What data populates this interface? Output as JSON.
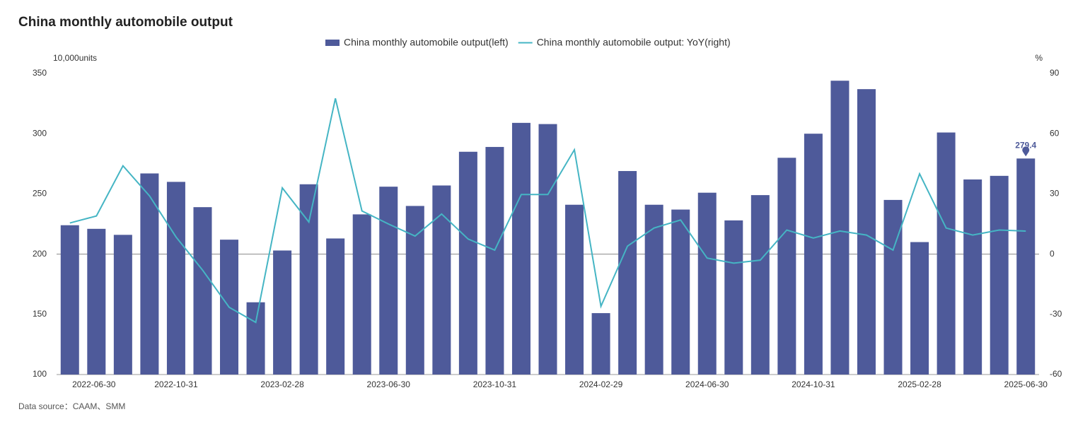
{
  "chart_data": {
    "type": "bar_line",
    "title": "China monthly automobile output",
    "y_label": "10,000units",
    "y2_label": "%",
    "source": "Data source：CAAM、SMM",
    "categories": [
      "2022-06-30",
      null,
      null,
      null,
      "2022-10-31",
      null,
      null,
      null,
      "2023-02-28",
      null,
      null,
      null,
      "2023-06-30",
      null,
      null,
      null,
      "2023-10-31",
      null,
      null,
      null,
      "2024-02-29",
      null,
      null,
      null,
      "2024-06-30",
      null,
      null,
      null,
      "2024-10-31",
      null,
      null,
      null,
      "2025-02-28",
      null,
      null,
      null,
      "2025-06-30"
    ],
    "series": [
      {
        "name": "China monthly automobile output(left)",
        "type": "bar",
        "color": "#4e5a9a",
        "axis": "y",
        "values": [
          224,
          221,
          216,
          267,
          260,
          239,
          212,
          160,
          203,
          258,
          213,
          233,
          256,
          240,
          257,
          285,
          289,
          309,
          308,
          241,
          151,
          269,
          241,
          237,
          251,
          228,
          249,
          280,
          300,
          344,
          337,
          245,
          210,
          301,
          262,
          265,
          279.4
        ]
      },
      {
        "name": "China monthly automobile output: YoY(right)",
        "type": "line",
        "color": "#45b5c4",
        "axis": "y2",
        "values": [
          15.5,
          19,
          44,
          29,
          8.5,
          -8,
          -26.5,
          -34,
          33,
          16,
          77.6,
          21.5,
          15,
          9,
          20,
          7.5,
          2,
          29.7,
          29.7,
          52,
          -26,
          4,
          13,
          17,
          -2,
          -4.5,
          -3,
          12,
          8,
          11.5,
          9.5,
          2,
          40,
          13,
          9.5,
          12,
          11.5
        ]
      }
    ],
    "ylim": [
      100,
      350
    ],
    "yticks": [
      100,
      150,
      200,
      250,
      300,
      350
    ],
    "y2lim": [
      -60,
      90
    ],
    "y2ticks": [
      -60,
      -30,
      0,
      30,
      60,
      90
    ],
    "zero_line_axis": "y2",
    "highlight_index": 36
  }
}
